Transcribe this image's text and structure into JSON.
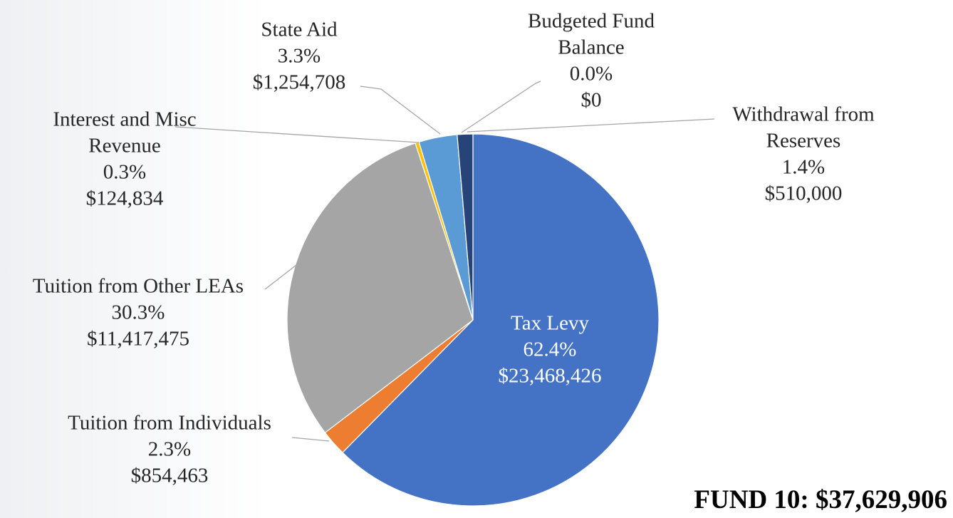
{
  "chart_data": {
    "type": "pie",
    "slices": [
      {
        "name": "Tax Levy",
        "percent_label": "62.4%",
        "amount_label": "$23,468,426",
        "value": 23468426,
        "color": "#4472c4"
      },
      {
        "name": "Tuition from Individuals",
        "percent_label": "2.3%",
        "amount_label": "$854,463",
        "value": 854463,
        "color": "#ed7d31"
      },
      {
        "name": "Tuition from Other LEAs",
        "percent_label": "30.3%",
        "amount_label": "$11,417,475",
        "value": 11417475,
        "color": "#a5a5a5"
      },
      {
        "name": "Interest and Misc Revenue",
        "percent_label": "0.3%",
        "amount_label": "$124,834",
        "value": 124834,
        "color": "#ffc000"
      },
      {
        "name": "State Aid",
        "percent_label": "3.3%",
        "amount_label": "$1,254,708",
        "value": 1254708,
        "color": "#5b9bd5"
      },
      {
        "name": "Budgeted Fund Balance",
        "percent_label": "0.0%",
        "amount_label": "$0",
        "value": 0,
        "color": "#70ad47"
      },
      {
        "name": "Withdrawal from Reserves",
        "percent_label": "1.4%",
        "amount_label": "$510,000",
        "value": 510000,
        "color": "#264478"
      }
    ]
  },
  "total_label": "FUND 10: $37,629,906"
}
